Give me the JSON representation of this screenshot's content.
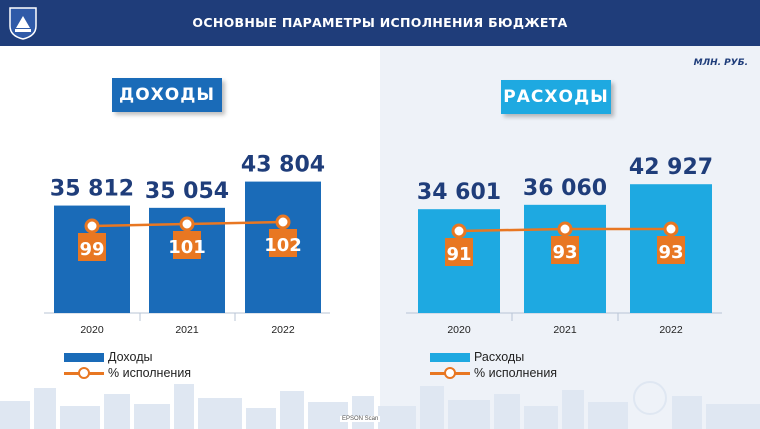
{
  "header": {
    "title": "ОСНОВНЫЕ ПАРАМЕТРЫ ИСПОЛНЕНИЯ БЮДЖЕТА"
  },
  "units": "МЛН. РУБ.",
  "colors": {
    "header_bg": "#1f3d7a",
    "income_bar": "#1a6bb8",
    "expense_bar": "#1ea9e1",
    "pct_line": "#e87722",
    "value_text": "#1f3d7a"
  },
  "chart_data": [
    {
      "type": "bar",
      "title": "ДОХОДЫ",
      "categories": [
        "2020",
        "2021",
        "2022"
      ],
      "series": [
        {
          "name": "Доходы",
          "values": [
            35812,
            35054,
            43804
          ],
          "labels": [
            "35 812",
            "35 054",
            "43 804"
          ]
        },
        {
          "name": "% исполнения",
          "type": "line",
          "values": [
            99,
            101,
            102
          ]
        }
      ],
      "legend": "bottom-left"
    },
    {
      "type": "bar",
      "title": "РАСХОДЫ",
      "categories": [
        "2020",
        "2021",
        "2022"
      ],
      "series": [
        {
          "name": "Расходы",
          "values": [
            34601,
            36060,
            42927
          ],
          "labels": [
            "34 601",
            "36 060",
            "42 927"
          ]
        },
        {
          "name": "% исполнения",
          "type": "line",
          "values": [
            91,
            93,
            93
          ]
        }
      ],
      "legend": "bottom-left"
    }
  ],
  "footer": {
    "scan_label": "EPSON Scan"
  }
}
